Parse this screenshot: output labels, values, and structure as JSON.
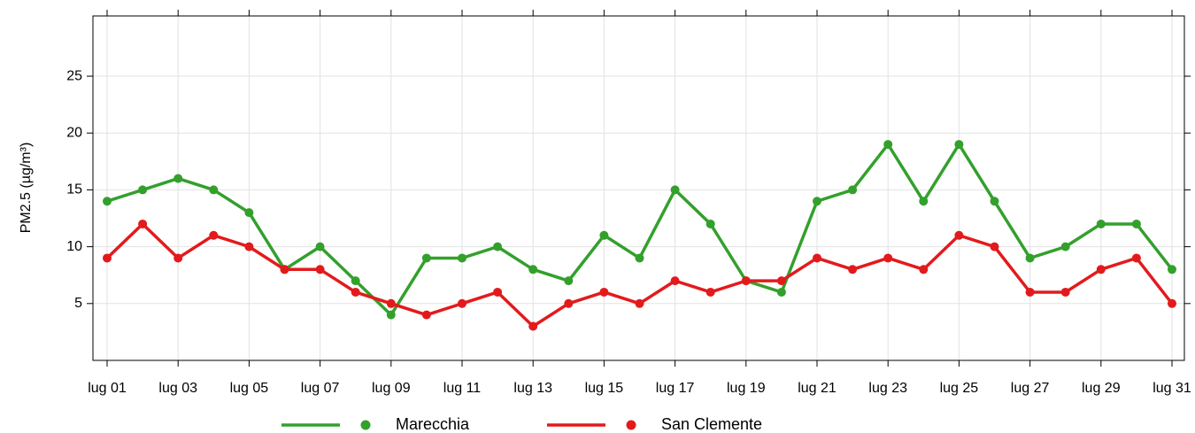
{
  "chart_data": {
    "type": "line",
    "y_label": "PM2.5 (µg/m³)",
    "categories": [
      "lug 01",
      null,
      "lug 03",
      null,
      "lug 05",
      null,
      "lug 07",
      null,
      "lug 09",
      null,
      "lug 11",
      null,
      "lug 13",
      null,
      "lug 15",
      null,
      "lug 17",
      null,
      "lug 19",
      null,
      "lug 21",
      null,
      "lug 23",
      null,
      "lug 25",
      null,
      "lug 27",
      null,
      "lug 29",
      null,
      "lug 31"
    ],
    "series": [
      {
        "name": "Marecchia",
        "color": "#33a02c",
        "values": [
          14,
          15,
          16,
          15,
          13,
          8,
          10,
          7,
          4,
          9,
          9,
          10,
          8,
          7,
          11,
          9,
          15,
          12,
          7,
          6,
          14,
          15,
          19,
          14,
          19,
          14,
          9,
          10,
          12,
          12,
          8
        ]
      },
      {
        "name": "San Clemente",
        "color": "#e31a1c",
        "values": [
          9,
          12,
          9,
          11,
          10,
          8,
          8,
          6,
          5,
          4,
          5,
          6,
          3,
          5,
          6,
          5,
          7,
          6,
          7,
          7,
          9,
          8,
          9,
          8,
          11,
          10,
          6,
          6,
          8,
          9,
          5
        ]
      }
    ],
    "ylim": [
      0,
      30.3
    ],
    "yticks": [
      5,
      10,
      15,
      20,
      25
    ],
    "grid": true,
    "legend": "bottom"
  }
}
